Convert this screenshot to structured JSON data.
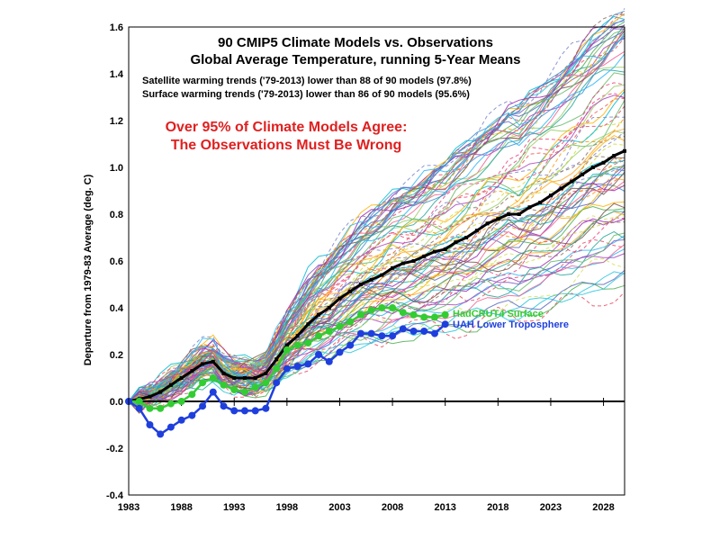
{
  "chart_data": {
    "type": "line",
    "title_line1": "90 CMIP5 Climate Models vs. Observations",
    "title_line2": "Global Average Temperature, running 5-Year Means",
    "note_line1": "Satellite warming trends ('79-2013) lower than 88 of 90 models (97.8%)",
    "note_line2": "Surface warming trends ('79-2013) lower than 86 of 90 models (95.6%)",
    "headline_line1": "Over 95% of Climate Models Agree:",
    "headline_line2": "The Observations Must Be Wrong",
    "headline_color": "#e02020",
    "ylabel": "Departure from 1979-83 Average (deg. C)",
    "xlim": [
      1983,
      2030
    ],
    "ylim": [
      -0.4,
      1.6
    ],
    "x_ticks": [
      1983,
      1988,
      1993,
      1998,
      2003,
      2008,
      2013,
      2018,
      2023,
      2028
    ],
    "x_tick_labels": [
      "1983",
      "1988",
      "1993",
      "1998",
      "2003",
      "2008",
      "2013",
      "2018",
      "2023",
      "2028"
    ],
    "y_ticks": [
      -0.4,
      -0.2,
      0.0,
      0.2,
      0.4,
      0.6,
      0.8,
      1.0,
      1.2,
      1.4,
      1.6
    ],
    "y_tick_labels": [
      "-0.4",
      "-0.2",
      "0.0",
      "0.2",
      "0.4",
      "0.6",
      "0.8",
      "1.0",
      "1.2",
      "1.4",
      "1.6"
    ],
    "grid": false,
    "zero_line": true,
    "model_count": 90,
    "model_ensemble_mean": {
      "color": "#000000",
      "x": [
        1983,
        1984,
        1985,
        1986,
        1987,
        1988,
        1989,
        1990,
        1991,
        1992,
        1993,
        1994,
        1995,
        1996,
        1997,
        1998,
        1999,
        2000,
        2001,
        2002,
        2003,
        2004,
        2005,
        2006,
        2007,
        2008,
        2009,
        2010,
        2011,
        2012,
        2013,
        2014,
        2015,
        2016,
        2017,
        2018,
        2019,
        2020,
        2021,
        2022,
        2023,
        2024,
        2025,
        2026,
        2027,
        2028,
        2029,
        2030
      ],
      "y": [
        0.0,
        0.01,
        0.02,
        0.04,
        0.07,
        0.1,
        0.13,
        0.16,
        0.17,
        0.12,
        0.1,
        0.1,
        0.1,
        0.12,
        0.18,
        0.24,
        0.28,
        0.33,
        0.37,
        0.4,
        0.44,
        0.47,
        0.5,
        0.52,
        0.54,
        0.57,
        0.59,
        0.6,
        0.62,
        0.64,
        0.65,
        0.68,
        0.7,
        0.73,
        0.76,
        0.78,
        0.8,
        0.8,
        0.83,
        0.85,
        0.88,
        0.91,
        0.94,
        0.97,
        1.0,
        1.02,
        1.05,
        1.07
      ]
    },
    "series": [
      {
        "name": "HadCRUT4 Surface",
        "color": "#33cc33",
        "x": [
          1983,
          1984,
          1985,
          1986,
          1987,
          1988,
          1989,
          1990,
          1991,
          1992,
          1993,
          1994,
          1995,
          1996,
          1997,
          1998,
          1999,
          2000,
          2001,
          2002,
          2003,
          2004,
          2005,
          2006,
          2007,
          2008,
          2009,
          2010,
          2011,
          2012,
          2013
        ],
        "y": [
          0.0,
          0.0,
          -0.03,
          -0.03,
          -0.01,
          0.0,
          0.03,
          0.08,
          0.1,
          0.07,
          0.05,
          0.04,
          0.06,
          0.08,
          0.14,
          0.22,
          0.24,
          0.25,
          0.28,
          0.3,
          0.32,
          0.34,
          0.37,
          0.39,
          0.4,
          0.4,
          0.38,
          0.37,
          0.36,
          0.36,
          0.37
        ]
      },
      {
        "name": "UAH Lower Troposphere",
        "color": "#1f3fdd",
        "x": [
          1983,
          1984,
          1985,
          1986,
          1987,
          1988,
          1989,
          1990,
          1991,
          1992,
          1993,
          1994,
          1995,
          1996,
          1997,
          1998,
          1999,
          2000,
          2001,
          2002,
          2003,
          2004,
          2005,
          2006,
          2007,
          2008,
          2009,
          2010,
          2011,
          2012,
          2013
        ],
        "y": [
          0.0,
          -0.03,
          -0.1,
          -0.14,
          -0.11,
          -0.08,
          -0.06,
          -0.02,
          0.04,
          -0.02,
          -0.04,
          -0.04,
          -0.04,
          -0.03,
          0.08,
          0.14,
          0.15,
          0.16,
          0.2,
          0.17,
          0.21,
          0.24,
          0.29,
          0.29,
          0.28,
          0.28,
          0.31,
          0.3,
          0.3,
          0.29,
          0.33
        ]
      }
    ]
  }
}
